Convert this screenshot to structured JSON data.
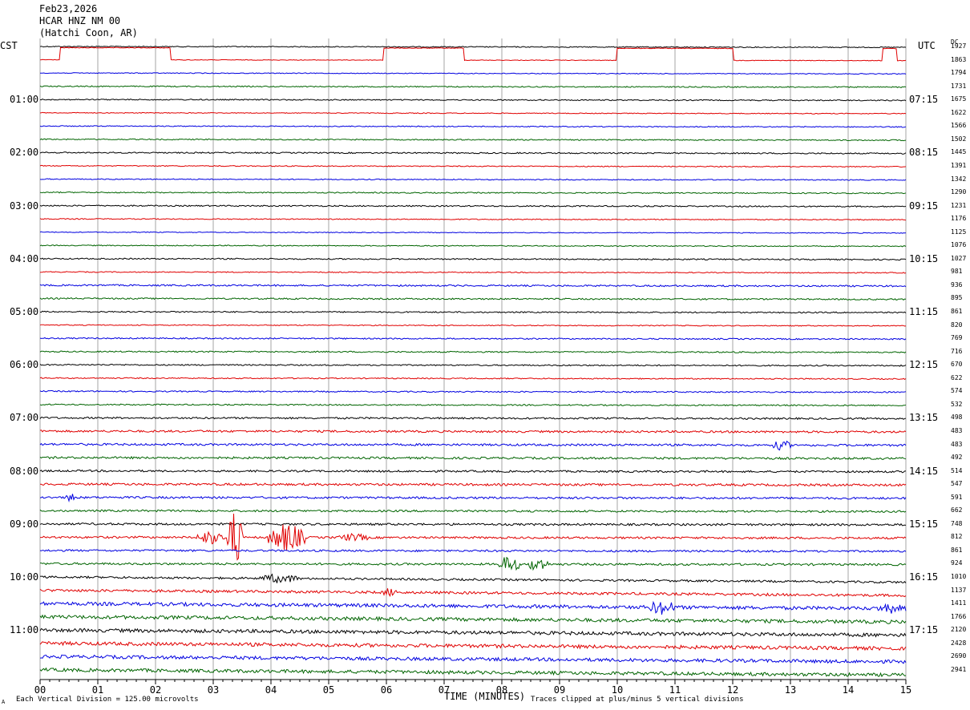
{
  "header": {
    "date": "Feb23,2026",
    "station": "HCAR HNZ NM 00",
    "location": "(Hatchi Coon, AR)"
  },
  "left_timezone": "CST",
  "right_timezone": "UTC",
  "right_column_header": "DC",
  "footer": {
    "scale_note": "Each Vertical Division = 125.00 microvolts",
    "clip_note": "Traces clipped at plus/minus 5 vertical divisions",
    "corner_mark": "A"
  },
  "colors": {
    "trace_cycle": [
      "#000000",
      "#e00000",
      "#0000e0",
      "#006400"
    ],
    "grid": "#808080"
  },
  "chart_data": {
    "type": "helicorder",
    "xlabel": "TIME (MINUTES)",
    "x_ticks": [
      "00",
      "01",
      "02",
      "03",
      "04",
      "05",
      "06",
      "07",
      "08",
      "09",
      "10",
      "11",
      "12",
      "13",
      "14",
      "15"
    ],
    "xlim": [
      0,
      15
    ],
    "minutes_per_line": 15,
    "cst_hour_labels": [
      "01:00",
      "02:00",
      "03:00",
      "04:00",
      "05:00",
      "06:00",
      "07:00",
      "08:00",
      "09:00",
      "10:00",
      "11:00"
    ],
    "utc_labels": [
      "07:15",
      "08:15",
      "09:15",
      "10:15",
      "11:15",
      "12:15",
      "13:15",
      "14:15",
      "15:15",
      "16:15",
      "17:15"
    ],
    "dc_offsets": [
      1927,
      1863,
      1794,
      1731,
      1675,
      1622,
      1566,
      1502,
      1445,
      1391,
      1342,
      1290,
      1231,
      1176,
      1125,
      1076,
      1027,
      981,
      936,
      895,
      861,
      820,
      769,
      716,
      670,
      622,
      574,
      532,
      498,
      483,
      483,
      492,
      514,
      547,
      591,
      662,
      748,
      812,
      861,
      924,
      1010,
      1137,
      1411,
      1766,
      2120,
      2428,
      2690,
      2941
    ],
    "trace_noise_levels": [
      0.6,
      0.4,
      0.5,
      0.7,
      0.7,
      0.5,
      0.6,
      0.7,
      0.8,
      0.6,
      0.6,
      0.7,
      0.8,
      0.6,
      0.5,
      0.6,
      0.8,
      0.6,
      1.0,
      0.9,
      0.8,
      0.6,
      0.8,
      0.8,
      0.8,
      0.7,
      0.8,
      0.8,
      1.1,
      1.3,
      1.3,
      1.3,
      1.2,
      1.4,
      1.3,
      1.2,
      1.3,
      1.3,
      1.2,
      1.3,
      1.3,
      1.6,
      2.2,
      2.2,
      2.2,
      2.2,
      2.1,
      2.1
    ],
    "events": [
      {
        "trace": 1,
        "start_min": 0.35,
        "end_min": 2.25,
        "amp": 1.5,
        "kind": "gap"
      },
      {
        "trace": 1,
        "start_min": 5.95,
        "end_min": 7.35,
        "amp": 1.5,
        "kind": "gap"
      },
      {
        "trace": 1,
        "start_min": 10.0,
        "end_min": 12.0,
        "amp": 1.5,
        "kind": "gap"
      },
      {
        "trace": 1,
        "start_min": 14.6,
        "end_min": 14.85,
        "amp": 1.5,
        "kind": "gap"
      },
      {
        "trace": 30,
        "start_min": 12.7,
        "end_min": 13.0,
        "amp": 6
      },
      {
        "trace": 34,
        "start_min": 0.45,
        "end_min": 0.65,
        "amp": 5
      },
      {
        "trace": 37,
        "start_min": 2.7,
        "end_min": 3.2,
        "amp": 8
      },
      {
        "trace": 37,
        "start_min": 3.25,
        "end_min": 3.5,
        "amp": 38
      },
      {
        "trace": 37,
        "start_min": 3.95,
        "end_min": 4.6,
        "amp": 18
      },
      {
        "trace": 37,
        "start_min": 5.15,
        "end_min": 5.7,
        "amp": 4
      },
      {
        "trace": 39,
        "start_min": 7.95,
        "end_min": 8.3,
        "amp": 11
      },
      {
        "trace": 39,
        "start_min": 8.45,
        "end_min": 8.8,
        "amp": 9
      },
      {
        "trace": 40,
        "start_min": 3.8,
        "end_min": 4.5,
        "amp": 5
      },
      {
        "trace": 41,
        "start_min": 5.9,
        "end_min": 6.2,
        "amp": 4
      },
      {
        "trace": 42,
        "start_min": 10.55,
        "end_min": 11.0,
        "amp": 8
      },
      {
        "trace": 42,
        "start_min": 14.5,
        "end_min": 15.0,
        "amp": 4
      }
    ]
  }
}
